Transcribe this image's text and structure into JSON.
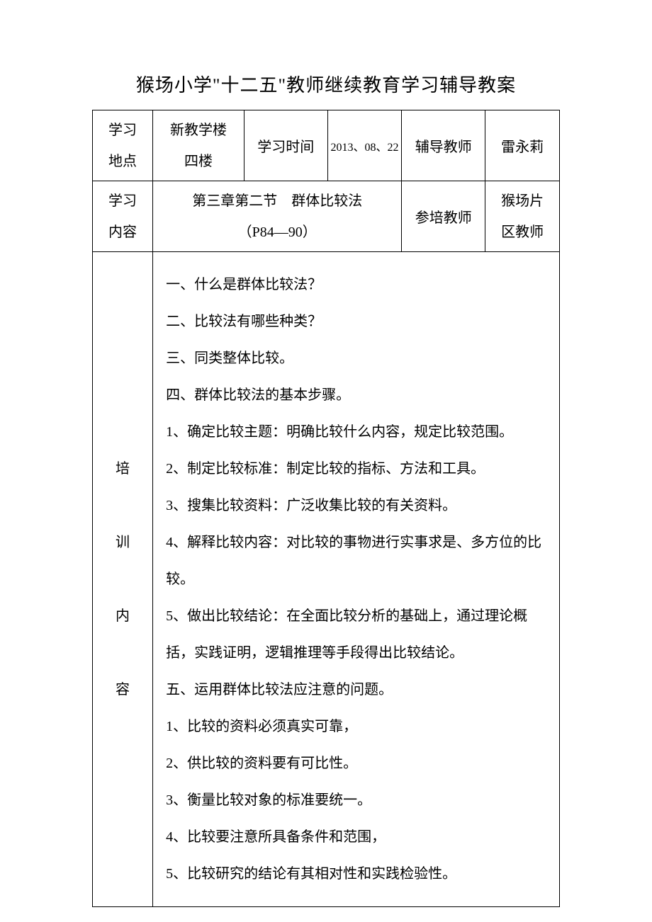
{
  "title": "猴场小学\"十二五\"教师继续教育学习辅导教案",
  "header": {
    "row1": {
      "label1": "学习",
      "label1b": "地点",
      "col2a": "新教学楼",
      "col2b": "四楼",
      "col3": "学习时间",
      "col4": "2013、08、22",
      "col5": "辅导教师",
      "col6": "雷永莉"
    },
    "row2": {
      "label1": "学习",
      "label1b": "内容",
      "col2a": "第三章第二节　群体比较法",
      "col2b": "（P84—90）",
      "col5": "参培教师",
      "col6a": "猴场片",
      "col6b": "区教师"
    }
  },
  "body": {
    "label1": "培",
    "label2": "训",
    "label3": "内",
    "label4": "容",
    "lines": [
      "一、什么是群体比较法？",
      "二、比较法有哪些种类？",
      "三、同类整体比较。",
      "四、群体比较法的基本步骤。",
      "1、确定比较主题：明确比较什么内容，规定比较范围。",
      "2、制定比较标准：制定比较的指标、方法和工具。",
      "3、搜集比较资料：广泛收集比较的有关资料。",
      "4、解释比较内容：对比较的事物进行实事求是、多方位的比较。",
      "5、做出比较结论：在全面比较分析的基础上，通过理论概括，实践证明，逻辑推理等手段得出比较结论。",
      "五、运用群体比较法应注意的问题。",
      "1、比较的资料必须真实可靠，",
      "2、供比较的资料要有可比性。",
      "3、衡量比较对象的标准要统一。",
      "4、比较要注意所具备条件和范围，",
      "5、比较研究的结论有其相对性和实践检验性。"
    ]
  },
  "style": {
    "page_bg": "#ffffff",
    "text_color": "#000000",
    "border_color": "#000000",
    "title_fontsize": 26,
    "cell_fontsize": 20,
    "date_fontsize": 16,
    "content_line_height": 2.6
  }
}
